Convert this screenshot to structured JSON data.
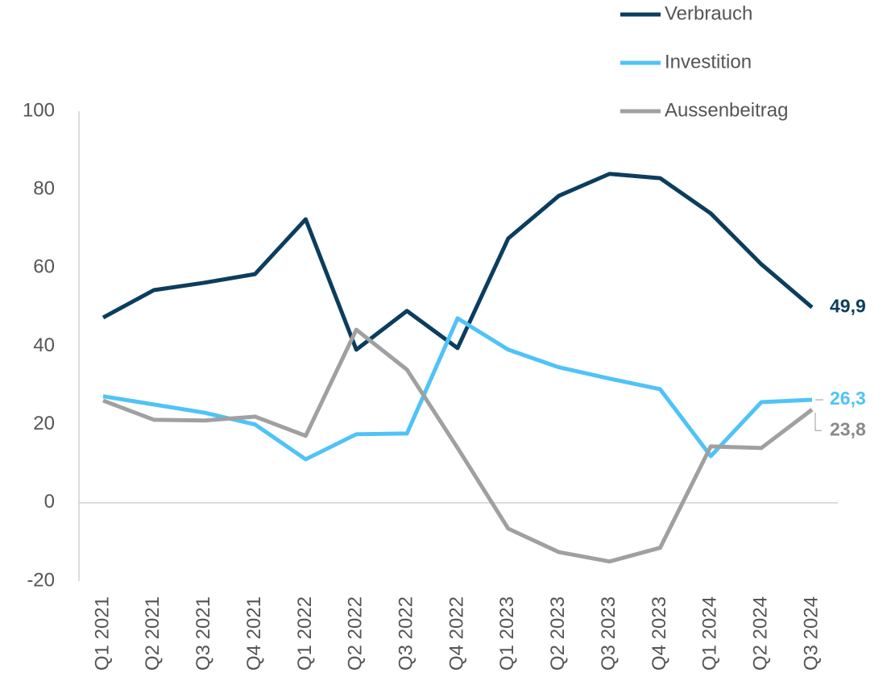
{
  "chart_data": {
    "type": "line",
    "categories": [
      "Q1 2021",
      "Q2 2021",
      "Q3 2021",
      "Q4 2021",
      "Q1 2022",
      "Q2 2022",
      "Q3 2022",
      "Q4 2022",
      "Q1 2023",
      "Q2 2023",
      "Q3 2023",
      "Q4 2023",
      "Q1 2024",
      "Q2 2024",
      "Q3 2024"
    ],
    "series": [
      {
        "name": "Verbrauch",
        "color": "#0b3d5e",
        "values": [
          47.3,
          54.3,
          56.2,
          58.4,
          72.4,
          39.1,
          49,
          39.5,
          67.5,
          78.4,
          84,
          82.9,
          73.9,
          60.9,
          49.9
        ],
        "value_labels": [
          null,
          null,
          null,
          null,
          null,
          null,
          null,
          null,
          null,
          null,
          null,
          null,
          null,
          null,
          "49,9"
        ]
      },
      {
        "name": "Investition",
        "color": "#4fc3f7",
        "values": [
          27.2,
          25.1,
          23,
          20,
          11.1,
          17.5,
          17.7,
          47.1,
          39.1,
          34.6,
          31.7,
          29,
          11.9,
          25.7,
          26.3
        ],
        "value_labels": [
          null,
          null,
          null,
          null,
          null,
          null,
          null,
          null,
          null,
          null,
          null,
          null,
          null,
          null,
          "26,3"
        ]
      },
      {
        "name": "Aussenbeitrag",
        "color": "#a0a0a0",
        "values": [
          26.1,
          21.2,
          21,
          22,
          17.1,
          44.2,
          34,
          14,
          -6.6,
          -12.6,
          -15,
          -11.5,
          14.4,
          14,
          23.8
        ],
        "value_labels": [
          null,
          null,
          null,
          null,
          null,
          null,
          null,
          null,
          null,
          null,
          null,
          null,
          null,
          null,
          "23,8"
        ]
      }
    ],
    "ylim": [
      -20,
      100
    ],
    "yticks": [
      -20,
      0,
      20,
      40,
      60,
      80,
      100
    ],
    "legend": "top-right"
  }
}
